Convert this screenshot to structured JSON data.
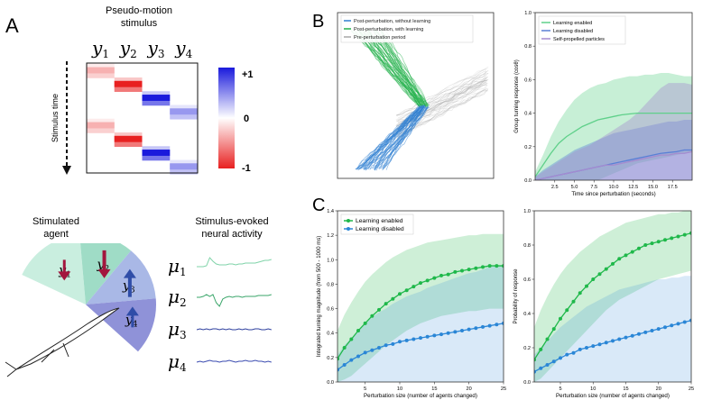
{
  "panel_labels": [
    "A",
    "B",
    "C"
  ],
  "panelA": {
    "stimulus_title": [
      "Pseudo-motion",
      "stimulus"
    ],
    "columns": [
      {
        "sym": "y",
        "sub": "1"
      },
      {
        "sym": "y",
        "sub": "2"
      },
      {
        "sym": "y",
        "sub": "3"
      },
      {
        "sym": "y",
        "sub": "4"
      }
    ],
    "time_label": "Stimulus time",
    "colorbar_ticks": [
      "+1",
      "0",
      "-1"
    ],
    "colors": {
      "positive": "#1a1adc",
      "negative": "#e82020"
    },
    "stimulus_blocks": [
      {
        "row": 0,
        "col": 0,
        "value": -0.35
      },
      {
        "row": 1,
        "col": 1,
        "value": -1.0
      },
      {
        "row": 2,
        "col": 2,
        "value": 1.0
      },
      {
        "row": 3,
        "col": 3,
        "value": 0.45
      },
      {
        "row": 4,
        "col": 0,
        "value": -0.35
      },
      {
        "row": 5,
        "col": 1,
        "value": -1.0
      },
      {
        "row": 6,
        "col": 2,
        "value": 1.0
      },
      {
        "row": 7,
        "col": 3,
        "value": 0.45
      }
    ],
    "agent_title": [
      "Stimulated",
      "agent"
    ],
    "agent_sectors": [
      {
        "sym": "y",
        "sub": "1",
        "arrow": "down",
        "arrow_color": "#a3163e",
        "fill": "#c9eedf"
      },
      {
        "sym": "y",
        "sub": "2",
        "arrow": "down",
        "arrow_color": "#a3163e",
        "fill": "#9fdcc6"
      },
      {
        "sym": "y",
        "sub": "3",
        "arrow": "up",
        "arrow_color": "#2f4da8",
        "fill": "#a9b8e6"
      },
      {
        "sym": "y",
        "sub": "4",
        "arrow": "up",
        "arrow_color": "#2f4da8",
        "fill": "#8f92d8"
      }
    ],
    "neural_title": [
      "Stimulus-evoked",
      "neural activity"
    ],
    "neural_traces": [
      {
        "sym": "μ",
        "sub": "1",
        "color": "#7fd3a8"
      },
      {
        "sym": "μ",
        "sub": "2",
        "color": "#3aa66a"
      },
      {
        "sym": "μ",
        "sub": "3",
        "color": "#2e3f9e"
      },
      {
        "sym": "μ",
        "sub": "4",
        "color": "#3a4bb0"
      }
    ]
  },
  "panelB_traj": {
    "legend": [
      {
        "label": "Post-perturbation, without learning",
        "color": "#2f7fd1"
      },
      {
        "label": "Post-perturbation, with learning",
        "color": "#22b04a"
      },
      {
        "label": "Pre-perturbation period",
        "color": "#a9a9a9"
      }
    ]
  },
  "chart_data": [
    {
      "type": "line",
      "id": "B-right",
      "title": "",
      "xlabel": "Time since perturbation (seconds)",
      "ylabel": "Group turning response (cosθ)",
      "xlim": [
        0,
        20
      ],
      "ylim": [
        0,
        1.0
      ],
      "xticks": [
        "2.5",
        "5.0",
        "7.5",
        "10.0",
        "12.5",
        "15.0",
        "17.5"
      ],
      "yticks": [
        "0.0",
        "0.2",
        "0.4",
        "0.6",
        "0.8",
        "1.0"
      ],
      "legend": [
        "Learning enabled",
        "Learning disabled",
        "Self-propelled particles"
      ],
      "series": [
        {
          "name": "Learning enabled",
          "color": "#5fd08a",
          "x": [
            0,
            1,
            2,
            3,
            4,
            5,
            6,
            7,
            8,
            9,
            10,
            11,
            12,
            13,
            14,
            15,
            16,
            17,
            18,
            19,
            20
          ],
          "mean": [
            0.02,
            0.09,
            0.16,
            0.22,
            0.26,
            0.29,
            0.32,
            0.34,
            0.36,
            0.37,
            0.38,
            0.39,
            0.395,
            0.4,
            0.4,
            0.4,
            0.4,
            0.4,
            0.4,
            0.4,
            0.4
          ],
          "lower": [
            0,
            0,
            0,
            0,
            0,
            0,
            0,
            0,
            0,
            0.02,
            0.04,
            0.06,
            0.08,
            0.1,
            0.11,
            0.12,
            0.13,
            0.14,
            0.15,
            0.16,
            0.17
          ],
          "upper": [
            0.05,
            0.15,
            0.26,
            0.35,
            0.42,
            0.48,
            0.52,
            0.55,
            0.57,
            0.58,
            0.6,
            0.61,
            0.62,
            0.62,
            0.63,
            0.63,
            0.64,
            0.64,
            0.63,
            0.62,
            0.62
          ]
        },
        {
          "name": "Learning disabled",
          "color": "#5a7fd6",
          "x": [
            0,
            1,
            2,
            3,
            4,
            5,
            6,
            7,
            8,
            9,
            10,
            11,
            12,
            13,
            14,
            15,
            16,
            17,
            18,
            19,
            20
          ],
          "mean": [
            0,
            0.01,
            0.02,
            0.03,
            0.04,
            0.05,
            0.06,
            0.07,
            0.08,
            0.09,
            0.1,
            0.11,
            0.12,
            0.13,
            0.14,
            0.15,
            0.16,
            0.165,
            0.17,
            0.18,
            0.18
          ],
          "lower": [
            0,
            0,
            0,
            0,
            0,
            0,
            0,
            0,
            0,
            0,
            0,
            0,
            0,
            0,
            0,
            0,
            0,
            0,
            0,
            0,
            0
          ],
          "upper": [
            0.02,
            0.06,
            0.09,
            0.12,
            0.15,
            0.18,
            0.2,
            0.22,
            0.24,
            0.26,
            0.28,
            0.29,
            0.3,
            0.31,
            0.32,
            0.33,
            0.34,
            0.35,
            0.35,
            0.36,
            0.36
          ]
        },
        {
          "name": "Self-propelled particles",
          "color": "#a58bd0",
          "x": [
            0,
            1,
            2,
            3,
            4,
            5,
            6,
            7,
            8,
            9,
            10,
            11,
            12,
            13,
            14,
            15,
            16,
            17,
            18,
            19,
            20
          ],
          "mean": [
            0,
            0.01,
            0.02,
            0.03,
            0.04,
            0.05,
            0.06,
            0.07,
            0.08,
            0.09,
            0.09,
            0.1,
            0.11,
            0.12,
            0.13,
            0.14,
            0.15,
            0.15,
            0.16,
            0.16,
            0.17
          ],
          "lower": [
            0,
            0,
            0,
            0,
            0,
            0,
            0,
            0,
            0,
            0,
            0,
            0,
            0,
            0,
            0,
            0,
            0,
            0,
            0,
            0,
            0
          ],
          "upper": [
            0.02,
            0.05,
            0.08,
            0.11,
            0.14,
            0.17,
            0.19,
            0.21,
            0.24,
            0.27,
            0.3,
            0.33,
            0.36,
            0.4,
            0.45,
            0.5,
            0.55,
            0.58,
            0.58,
            0.58,
            0.57
          ]
        }
      ]
    },
    {
      "type": "line",
      "id": "C-left",
      "xlabel": "Perturbation size (number of agents changed)",
      "ylabel": "Integrated turning magnitude (from 500 - 1000 ms)",
      "xlim": [
        1,
        25
      ],
      "ylim": [
        0,
        1.4
      ],
      "xticks": [
        "5",
        "10",
        "15",
        "20",
        "25"
      ],
      "yticks": [
        "0.0",
        "0.2",
        "0.4",
        "0.6",
        "0.8",
        "1.0",
        "1.2",
        "1.4"
      ],
      "legend": [
        "Learning enabled",
        "Learning disabled"
      ],
      "series": [
        {
          "name": "Learning enabled",
          "color": "#1fb84a",
          "x": [
            1,
            2,
            3,
            4,
            5,
            6,
            7,
            8,
            9,
            10,
            11,
            12,
            13,
            14,
            15,
            16,
            17,
            18,
            19,
            20,
            21,
            22,
            23,
            24,
            25
          ],
          "mean": [
            0.19,
            0.28,
            0.35,
            0.42,
            0.48,
            0.54,
            0.59,
            0.64,
            0.68,
            0.72,
            0.75,
            0.78,
            0.81,
            0.83,
            0.85,
            0.87,
            0.88,
            0.9,
            0.91,
            0.92,
            0.93,
            0.94,
            0.95,
            0.95,
            0.95
          ],
          "lower": [
            0,
            0.02,
            0.05,
            0.1,
            0.15,
            0.2,
            0.25,
            0.3,
            0.34,
            0.38,
            0.42,
            0.45,
            0.48,
            0.5,
            0.52,
            0.54,
            0.55,
            0.56,
            0.57,
            0.58,
            0.58,
            0.59,
            0.6,
            0.6,
            0.6
          ],
          "upper": [
            0.42,
            0.55,
            0.65,
            0.74,
            0.82,
            0.88,
            0.93,
            0.98,
            1.02,
            1.05,
            1.08,
            1.1,
            1.12,
            1.14,
            1.15,
            1.16,
            1.17,
            1.18,
            1.19,
            1.2,
            1.2,
            1.21,
            1.21,
            1.21,
            1.21
          ]
        },
        {
          "name": "Learning disabled",
          "color": "#2a86d6",
          "x": [
            1,
            2,
            3,
            4,
            5,
            6,
            7,
            8,
            9,
            10,
            11,
            12,
            13,
            14,
            15,
            16,
            17,
            18,
            19,
            20,
            21,
            22,
            23,
            24,
            25
          ],
          "mean": [
            0.1,
            0.14,
            0.18,
            0.21,
            0.24,
            0.26,
            0.28,
            0.3,
            0.31,
            0.33,
            0.34,
            0.35,
            0.36,
            0.37,
            0.38,
            0.39,
            0.4,
            0.41,
            0.42,
            0.43,
            0.44,
            0.45,
            0.46,
            0.47,
            0.48
          ],
          "lower": [
            0,
            0,
            0,
            0,
            0,
            0,
            0,
            0,
            0,
            0,
            0,
            0,
            0,
            0,
            0,
            0,
            0,
            0,
            0,
            0,
            0,
            0,
            0,
            0,
            0
          ],
          "upper": [
            0.22,
            0.3,
            0.36,
            0.42,
            0.48,
            0.53,
            0.57,
            0.6,
            0.64,
            0.67,
            0.7,
            0.72,
            0.74,
            0.77,
            0.79,
            0.81,
            0.83,
            0.85,
            0.87,
            0.89,
            0.9,
            0.92,
            0.94,
            0.95,
            0.96
          ]
        }
      ]
    },
    {
      "type": "line",
      "id": "C-right",
      "xlabel": "Perturbation size (number of agents changed)",
      "ylabel": "Probability of response",
      "xlim": [
        1,
        25
      ],
      "ylim": [
        0,
        1.0
      ],
      "xticks": [
        "5",
        "10",
        "15",
        "20",
        "25"
      ],
      "yticks": [
        "0.0",
        "0.2",
        "0.4",
        "0.6",
        "0.8",
        "1.0"
      ],
      "series": [
        {
          "name": "Learning enabled",
          "color": "#1fb84a",
          "x": [
            1,
            2,
            3,
            4,
            5,
            6,
            7,
            8,
            9,
            10,
            11,
            12,
            13,
            14,
            15,
            16,
            17,
            18,
            19,
            20,
            21,
            22,
            23,
            24,
            25
          ],
          "mean": [
            0.13,
            0.19,
            0.25,
            0.31,
            0.37,
            0.42,
            0.47,
            0.52,
            0.56,
            0.6,
            0.63,
            0.66,
            0.69,
            0.72,
            0.74,
            0.76,
            0.78,
            0.8,
            0.81,
            0.82,
            0.83,
            0.84,
            0.85,
            0.86,
            0.87
          ],
          "lower": [
            0,
            0.02,
            0.06,
            0.1,
            0.14,
            0.18,
            0.22,
            0.26,
            0.3,
            0.34,
            0.38,
            0.42,
            0.45,
            0.48,
            0.5,
            0.52,
            0.54,
            0.56,
            0.58,
            0.6,
            0.61,
            0.62,
            0.63,
            0.64,
            0.65
          ],
          "upper": [
            0.32,
            0.42,
            0.5,
            0.57,
            0.63,
            0.68,
            0.72,
            0.76,
            0.79,
            0.82,
            0.85,
            0.87,
            0.89,
            0.91,
            0.93,
            0.94,
            0.95,
            0.96,
            0.97,
            0.98,
            0.98,
            0.99,
            0.99,
            1.0,
            1.0
          ]
        },
        {
          "name": "Learning disabled",
          "color": "#2a86d6",
          "x": [
            1,
            2,
            3,
            4,
            5,
            6,
            7,
            8,
            9,
            10,
            11,
            12,
            13,
            14,
            15,
            16,
            17,
            18,
            19,
            20,
            21,
            22,
            23,
            24,
            25
          ],
          "mean": [
            0.06,
            0.08,
            0.1,
            0.12,
            0.14,
            0.16,
            0.17,
            0.19,
            0.2,
            0.21,
            0.22,
            0.23,
            0.24,
            0.25,
            0.26,
            0.27,
            0.28,
            0.29,
            0.3,
            0.31,
            0.32,
            0.33,
            0.34,
            0.35,
            0.36
          ],
          "lower": [
            0,
            0,
            0,
            0,
            0,
            0,
            0,
            0,
            0,
            0,
            0,
            0,
            0,
            0,
            0,
            0,
            0,
            0,
            0,
            0,
            0,
            0,
            0,
            0,
            0
          ],
          "upper": [
            0.16,
            0.2,
            0.24,
            0.28,
            0.32,
            0.35,
            0.38,
            0.41,
            0.44,
            0.46,
            0.48,
            0.5,
            0.52,
            0.54,
            0.55,
            0.56,
            0.57,
            0.58,
            0.59,
            0.6,
            0.6,
            0.61,
            0.61,
            0.62,
            0.62
          ]
        }
      ]
    }
  ]
}
